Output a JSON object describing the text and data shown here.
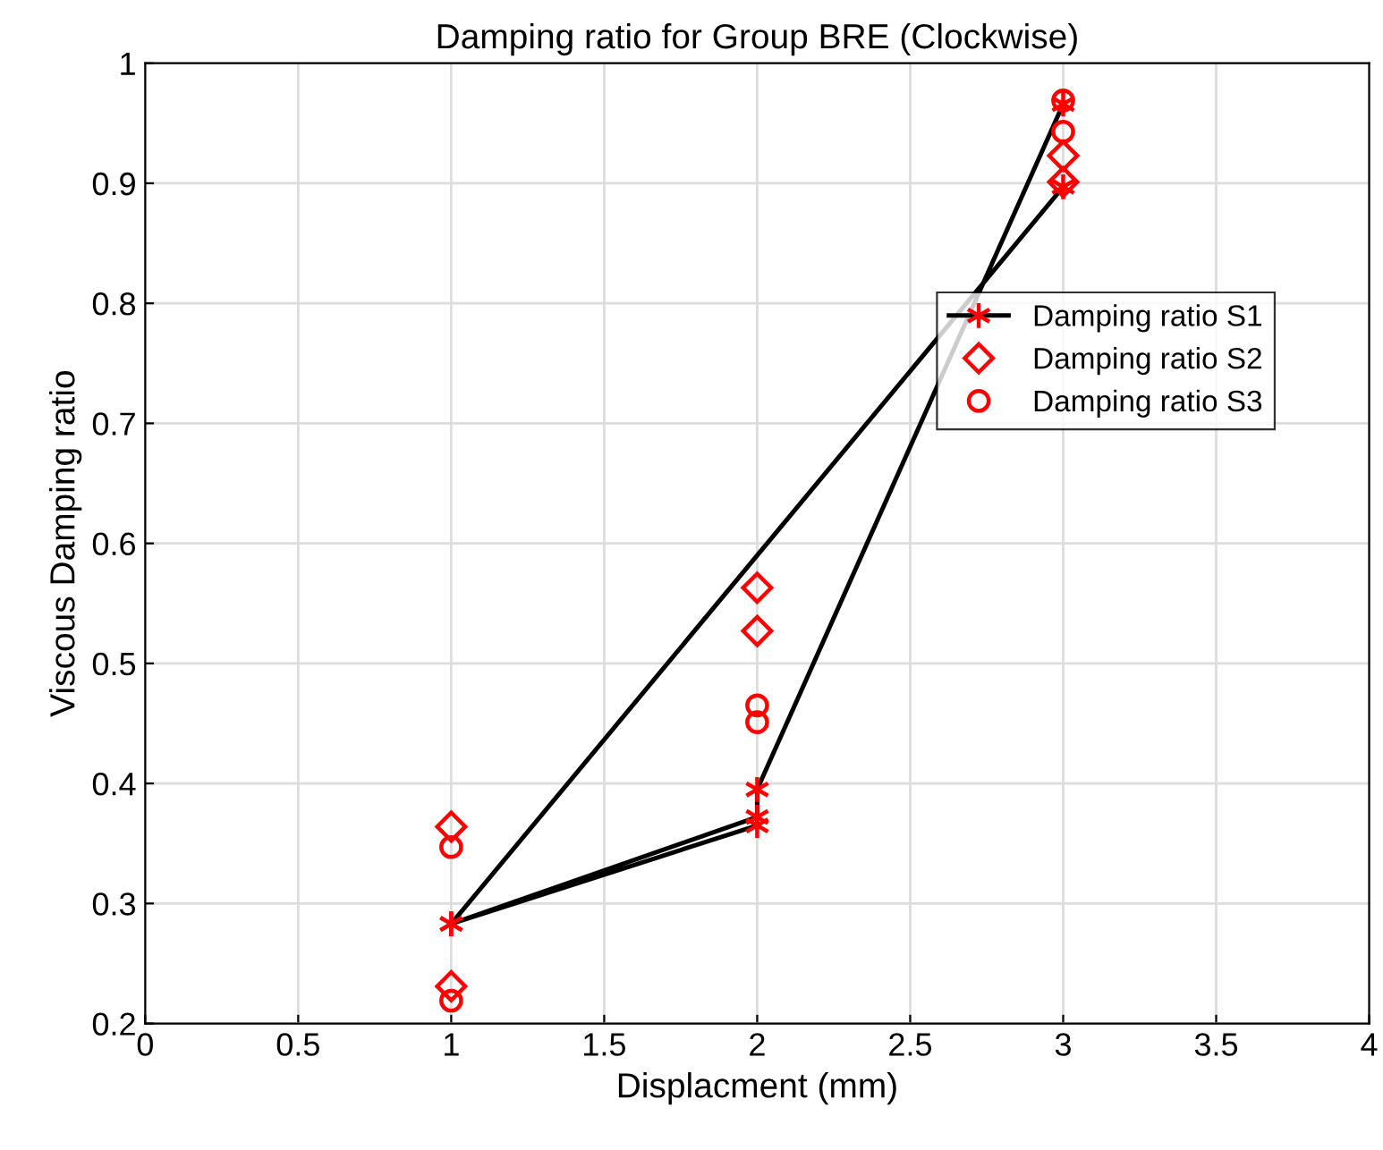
{
  "chart_data": {
    "type": "line",
    "title": "Damping ratio for Group BRE (Clockwise)",
    "xlabel": "Displacment (mm)",
    "ylabel": "Viscous Damping ratio",
    "xlim": [
      0,
      4
    ],
    "xticks": [
      0,
      0.5,
      1,
      1.5,
      2,
      2.5,
      3,
      3.5,
      4
    ],
    "ylim": [
      0.2,
      1
    ],
    "yticks": [
      0.2,
      0.3,
      0.4,
      0.5,
      0.6,
      0.7,
      0.8,
      0.9,
      1
    ],
    "grid": true,
    "legend": "right",
    "series": [
      {
        "name": "Damping ratio S1",
        "marker": "cross",
        "line_style": "solid",
        "color": "#ff0000",
        "x": [
          3,
          1,
          2,
          1,
          2,
          2,
          3
        ],
        "values": [
          0.897,
          0.283,
          0.365,
          0.283,
          0.372,
          0.395,
          0.966
        ]
      },
      {
        "name": "Damping ratio S2",
        "type": "scatter",
        "marker": "diamond",
        "color": "#ff0000",
        "x": [
          1,
          1,
          2,
          2,
          3,
          3
        ],
        "values": [
          0.364,
          0.231,
          0.563,
          0.527,
          0.923,
          0.901
        ]
      },
      {
        "name": "Damping ratio S3",
        "type": "scatter",
        "marker": "circle",
        "color": "#ff0000",
        "x": [
          1,
          1,
          2,
          2,
          3,
          3
        ],
        "values": [
          0.347,
          0.219,
          0.465,
          0.451,
          0.969,
          0.943
        ]
      }
    ]
  }
}
